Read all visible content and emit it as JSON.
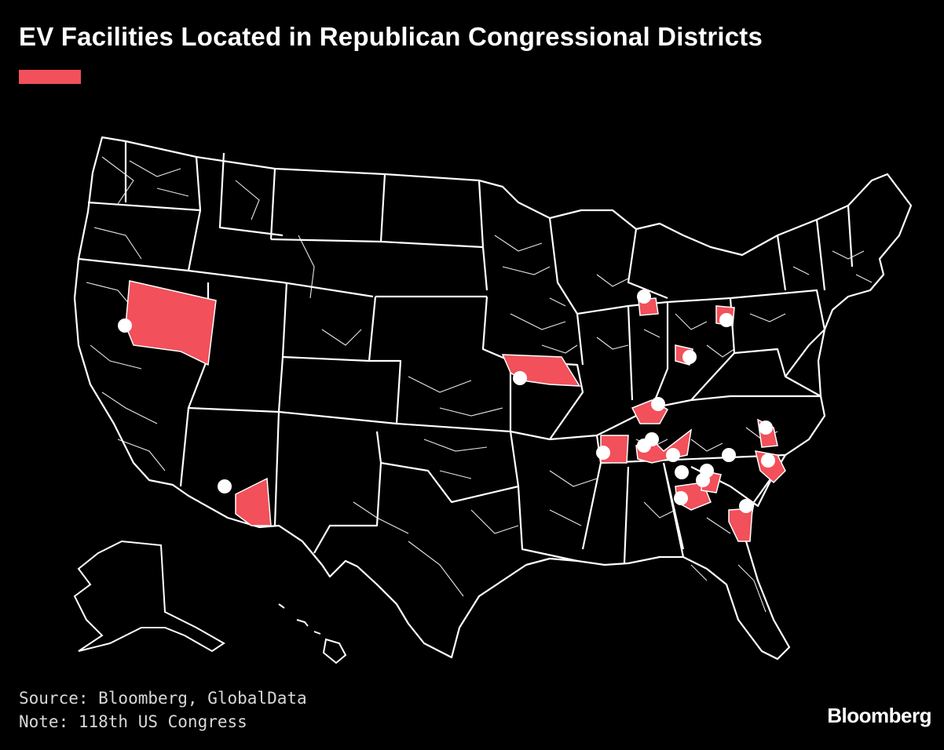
{
  "title": "EV Facilities Located in Republican Congressional Districts",
  "source": "Source: Bloomberg, GlobalData",
  "note": "Note: 118th US Congress",
  "logo_text": "Bloomberg",
  "colors": {
    "background": "#000000",
    "republican_district_fill": "#f2505a",
    "state_lines": "#ffffff",
    "facility_marker": "#ffffff"
  },
  "legend": {
    "swatch_color": "#f2505a",
    "label": ""
  },
  "icons": {
    "facility": "facility-marker-icon"
  }
}
